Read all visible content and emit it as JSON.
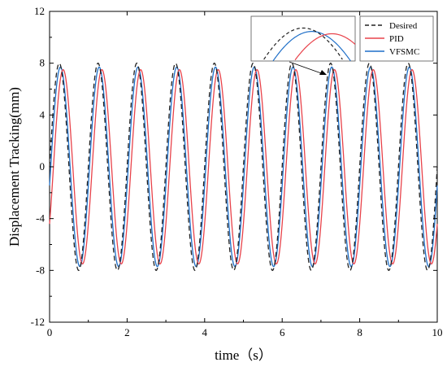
{
  "chart_data": {
    "type": "line",
    "xlabel": "time（s）",
    "ylabel": "Displacement Tracking(mm)",
    "xlim": [
      0,
      10
    ],
    "ylim": [
      -12,
      12
    ],
    "xticks": [
      0,
      2,
      4,
      6,
      8,
      10
    ],
    "yticks": [
      -12,
      -8,
      -4,
      0,
      4,
      8,
      12
    ],
    "grid": false,
    "legend_position": "top-right",
    "inset": "zoomed view of a peak near t=7.2 s",
    "series": [
      {
        "name": "Desired",
        "color": "#222222",
        "style": "dashed",
        "model": {
          "amplitude": 8.0,
          "frequency_hz": 1.0,
          "phase_s": 0.0
        }
      },
      {
        "name": "PID",
        "color": "#e8434b",
        "style": "solid",
        "model": {
          "amplitude": 7.5,
          "frequency_hz": 1.0,
          "phase_s": -0.1
        }
      },
      {
        "name": "VFSMC",
        "color": "#1f6fc8",
        "style": "solid",
        "model": {
          "amplitude": 7.7,
          "frequency_hz": 1.0,
          "phase_s": -0.03
        }
      }
    ]
  }
}
